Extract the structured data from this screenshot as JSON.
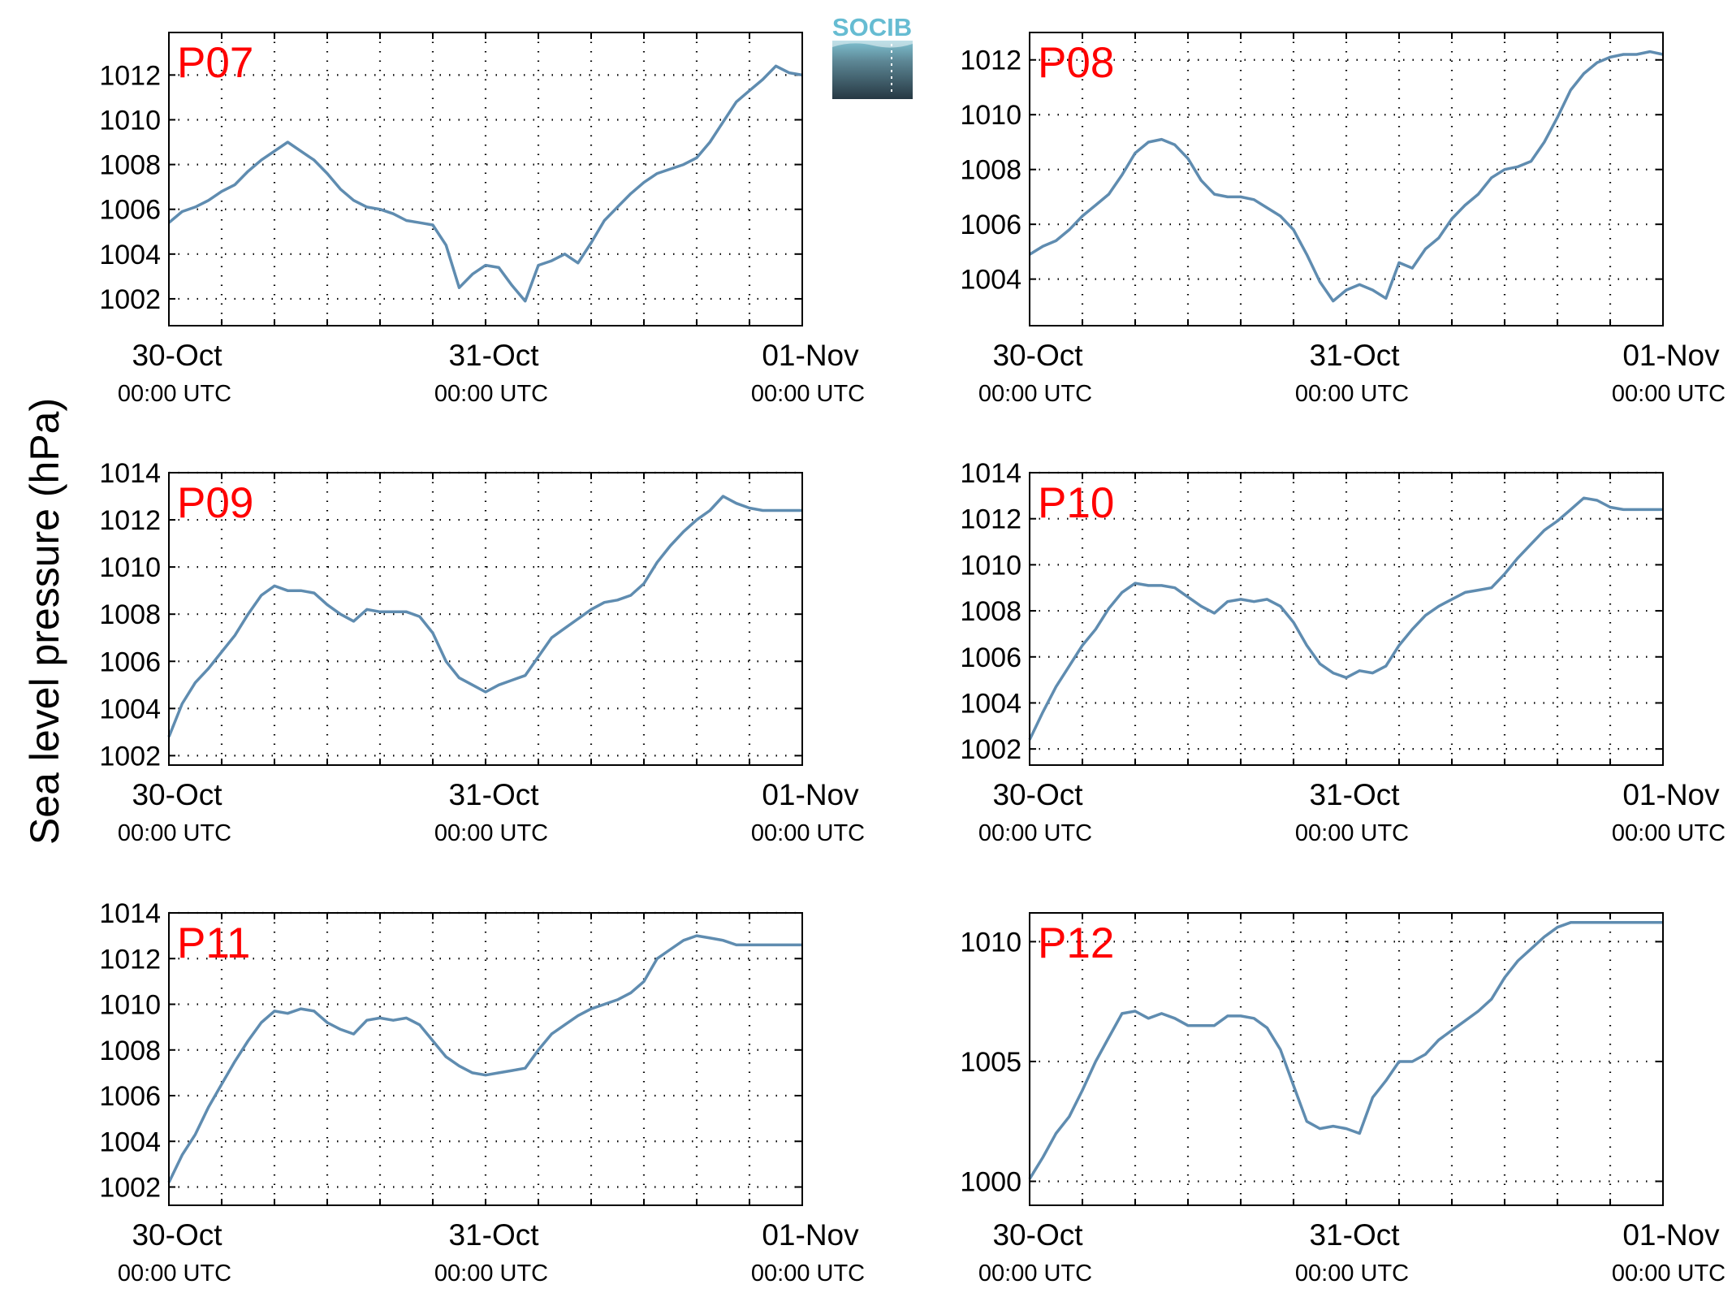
{
  "figure": {
    "ylabel": "Sea level pressure (hPa)",
    "logo_text": "SOCIB",
    "colors": {
      "line": "#5f8cb0",
      "panel_label": "#ff0000",
      "axis": "#000000",
      "grid": "#000000"
    }
  },
  "chart_data": [
    {
      "type": "line",
      "panel_label": "P07",
      "xticks": [
        {
          "d": "30-Oct",
          "t": "00:00 UTC"
        },
        {
          "d": "31-Oct",
          "t": "00:00 UTC"
        },
        {
          "d": "01-Nov",
          "t": "00:00 UTC"
        }
      ],
      "xlim": [
        0,
        48
      ],
      "ylim": [
        1000.8,
        1013.9
      ],
      "yticks": [
        1002,
        1004,
        1006,
        1008,
        1010,
        1012
      ],
      "series": [
        {
          "x": [
            0,
            1,
            2,
            3,
            4,
            5,
            6,
            7,
            8,
            9,
            10,
            11,
            12,
            13,
            14,
            15,
            16,
            17,
            18,
            19,
            20,
            21,
            22,
            23,
            24,
            25,
            26,
            27,
            28,
            29,
            30,
            31,
            32,
            33,
            34,
            35,
            36,
            37,
            38,
            39,
            40,
            41,
            42,
            43,
            44,
            45,
            46,
            47,
            48
          ],
          "y": [
            1005.4,
            1005.9,
            1006.1,
            1006.4,
            1006.8,
            1007.1,
            1007.7,
            1008.2,
            1008.6,
            1009.0,
            1008.6,
            1008.2,
            1007.6,
            1006.9,
            1006.4,
            1006.1,
            1006.0,
            1005.8,
            1005.5,
            1005.4,
            1005.3,
            1004.4,
            1002.5,
            1003.1,
            1003.5,
            1003.4,
            1002.6,
            1001.9,
            1003.5,
            1003.7,
            1004.0,
            1003.6,
            1004.5,
            1005.5,
            1006.1,
            1006.7,
            1007.2,
            1007.6,
            1007.8,
            1008.0,
            1008.3,
            1009.0,
            1009.9,
            1010.8,
            1011.3,
            1011.8,
            1012.4,
            1012.1,
            1012.0
          ]
        }
      ]
    },
    {
      "type": "line",
      "panel_label": "P08",
      "xticks": [
        {
          "d": "30-Oct",
          "t": "00:00 UTC"
        },
        {
          "d": "31-Oct",
          "t": "00:00 UTC"
        },
        {
          "d": "01-Nov",
          "t": "00:00 UTC"
        }
      ],
      "xlim": [
        0,
        48
      ],
      "ylim": [
        1002.3,
        1013.0
      ],
      "yticks": [
        1004,
        1006,
        1008,
        1010,
        1012
      ],
      "series": [
        {
          "x": [
            0,
            1,
            2,
            3,
            4,
            5,
            6,
            7,
            8,
            9,
            10,
            11,
            12,
            13,
            14,
            15,
            16,
            17,
            18,
            19,
            20,
            21,
            22,
            23,
            24,
            25,
            26,
            27,
            28,
            29,
            30,
            31,
            32,
            33,
            34,
            35,
            36,
            37,
            38,
            39,
            40,
            41,
            42,
            43,
            44,
            45,
            46,
            47,
            48
          ],
          "y": [
            1004.9,
            1005.2,
            1005.4,
            1005.8,
            1006.3,
            1006.7,
            1007.1,
            1007.8,
            1008.6,
            1009.0,
            1009.1,
            1008.9,
            1008.4,
            1007.6,
            1007.1,
            1007.0,
            1007.0,
            1006.9,
            1006.6,
            1006.3,
            1005.8,
            1004.9,
            1003.9,
            1003.2,
            1003.6,
            1003.8,
            1003.6,
            1003.3,
            1004.6,
            1004.4,
            1005.1,
            1005.5,
            1006.2,
            1006.7,
            1007.1,
            1007.7,
            1008.0,
            1008.1,
            1008.3,
            1009.0,
            1009.9,
            1010.9,
            1011.5,
            1011.9,
            1012.1,
            1012.2,
            1012.2,
            1012.3,
            1012.2
          ]
        }
      ]
    },
    {
      "type": "line",
      "panel_label": "P09",
      "xticks": [
        {
          "d": "30-Oct",
          "t": "00:00 UTC"
        },
        {
          "d": "31-Oct",
          "t": "00:00 UTC"
        },
        {
          "d": "01-Nov",
          "t": "00:00 UTC"
        }
      ],
      "xlim": [
        0,
        48
      ],
      "ylim": [
        1001.6,
        1014.0
      ],
      "yticks": [
        1002,
        1004,
        1006,
        1008,
        1010,
        1012,
        1014
      ],
      "series": [
        {
          "x": [
            0,
            1,
            2,
            3,
            4,
            5,
            6,
            7,
            8,
            9,
            10,
            11,
            12,
            13,
            14,
            15,
            16,
            17,
            18,
            19,
            20,
            21,
            22,
            23,
            24,
            25,
            26,
            27,
            28,
            29,
            30,
            31,
            32,
            33,
            34,
            35,
            36,
            37,
            38,
            39,
            40,
            41,
            42,
            43,
            44,
            45,
            46,
            47,
            48
          ],
          "y": [
            1002.8,
            1004.2,
            1005.1,
            1005.7,
            1006.4,
            1007.1,
            1008.0,
            1008.8,
            1009.2,
            1009.0,
            1009.0,
            1008.9,
            1008.4,
            1008.0,
            1007.7,
            1008.2,
            1008.1,
            1008.1,
            1008.1,
            1007.9,
            1007.2,
            1006.0,
            1005.3,
            1005.0,
            1004.7,
            1005.0,
            1005.2,
            1005.4,
            1006.2,
            1007.0,
            1007.4,
            1007.8,
            1008.2,
            1008.5,
            1008.6,
            1008.8,
            1009.3,
            1010.2,
            1010.9,
            1011.5,
            1012.0,
            1012.4,
            1013.0,
            1012.7,
            1012.5,
            1012.4,
            1012.4,
            1012.4,
            1012.4
          ]
        }
      ]
    },
    {
      "type": "line",
      "panel_label": "P10",
      "xticks": [
        {
          "d": "30-Oct",
          "t": "00:00 UTC"
        },
        {
          "d": "31-Oct",
          "t": "00:00 UTC"
        },
        {
          "d": "01-Nov",
          "t": "00:00 UTC"
        }
      ],
      "xlim": [
        0,
        48
      ],
      "ylim": [
        1001.3,
        1014.0
      ],
      "yticks": [
        1002,
        1004,
        1006,
        1008,
        1010,
        1012,
        1014
      ],
      "series": [
        {
          "x": [
            0,
            1,
            2,
            3,
            4,
            5,
            6,
            7,
            8,
            9,
            10,
            11,
            12,
            13,
            14,
            15,
            16,
            17,
            18,
            19,
            20,
            21,
            22,
            23,
            24,
            25,
            26,
            27,
            28,
            29,
            30,
            31,
            32,
            33,
            34,
            35,
            36,
            37,
            38,
            39,
            40,
            41,
            42,
            43,
            44,
            45,
            46,
            47,
            48
          ],
          "y": [
            1002.4,
            1003.6,
            1004.7,
            1005.6,
            1006.5,
            1007.2,
            1008.1,
            1008.8,
            1009.2,
            1009.1,
            1009.1,
            1009.0,
            1008.6,
            1008.2,
            1007.9,
            1008.4,
            1008.5,
            1008.4,
            1008.5,
            1008.2,
            1007.5,
            1006.5,
            1005.7,
            1005.3,
            1005.1,
            1005.4,
            1005.3,
            1005.6,
            1006.5,
            1007.2,
            1007.8,
            1008.2,
            1008.5,
            1008.8,
            1008.9,
            1009.0,
            1009.6,
            1010.3,
            1010.9,
            1011.5,
            1011.9,
            1012.4,
            1012.9,
            1012.8,
            1012.5,
            1012.4,
            1012.4,
            1012.4,
            1012.4
          ]
        }
      ]
    },
    {
      "type": "line",
      "panel_label": "P11",
      "xticks": [
        {
          "d": "30-Oct",
          "t": "00:00 UTC"
        },
        {
          "d": "31-Oct",
          "t": "00:00 UTC"
        },
        {
          "d": "01-Nov",
          "t": "00:00 UTC"
        }
      ],
      "xlim": [
        0,
        48
      ],
      "ylim": [
        1001.2,
        1014.0
      ],
      "yticks": [
        1002,
        1004,
        1006,
        1008,
        1010,
        1012,
        1014
      ],
      "series": [
        {
          "x": [
            0,
            1,
            2,
            3,
            4,
            5,
            6,
            7,
            8,
            9,
            10,
            11,
            12,
            13,
            14,
            15,
            16,
            17,
            18,
            19,
            20,
            21,
            22,
            23,
            24,
            25,
            26,
            27,
            28,
            29,
            30,
            31,
            32,
            33,
            34,
            35,
            36,
            37,
            38,
            39,
            40,
            41,
            42,
            43,
            44,
            45,
            46,
            47,
            48
          ],
          "y": [
            1002.2,
            1003.4,
            1004.3,
            1005.5,
            1006.5,
            1007.5,
            1008.4,
            1009.2,
            1009.7,
            1009.6,
            1009.8,
            1009.7,
            1009.2,
            1008.9,
            1008.7,
            1009.3,
            1009.4,
            1009.3,
            1009.4,
            1009.1,
            1008.4,
            1007.7,
            1007.3,
            1007.0,
            1006.9,
            1007.0,
            1007.1,
            1007.2,
            1008.0,
            1008.7,
            1009.1,
            1009.5,
            1009.8,
            1010.0,
            1010.2,
            1010.5,
            1011.0,
            1012.0,
            1012.4,
            1012.8,
            1013.0,
            1012.9,
            1012.8,
            1012.6,
            1012.6,
            1012.6,
            1012.6,
            1012.6,
            1012.6
          ]
        }
      ]
    },
    {
      "type": "line",
      "panel_label": "P12",
      "xticks": [
        {
          "d": "30-Oct",
          "t": "00:00 UTC"
        },
        {
          "d": "31-Oct",
          "t": "00:00 UTC"
        },
        {
          "d": "01-Nov",
          "t": "00:00 UTC"
        }
      ],
      "xlim": [
        0,
        48
      ],
      "ylim": [
        999.0,
        1011.2
      ],
      "yticks": [
        1000,
        1005,
        1010
      ],
      "series": [
        {
          "x": [
            0,
            1,
            2,
            3,
            4,
            5,
            6,
            7,
            8,
            9,
            10,
            11,
            12,
            13,
            14,
            15,
            16,
            17,
            18,
            19,
            20,
            21,
            22,
            23,
            24,
            25,
            26,
            27,
            28,
            29,
            30,
            31,
            32,
            33,
            34,
            35,
            36,
            37,
            38,
            39,
            40,
            41,
            42,
            43,
            44,
            45,
            46,
            47,
            48
          ],
          "y": [
            1000.1,
            1001.0,
            1002.0,
            1002.7,
            1003.8,
            1005.0,
            1006.0,
            1007.0,
            1007.1,
            1006.8,
            1007.0,
            1006.8,
            1006.5,
            1006.5,
            1006.5,
            1006.9,
            1006.9,
            1006.8,
            1006.4,
            1005.5,
            1004.0,
            1002.5,
            1002.2,
            1002.3,
            1002.2,
            1002.0,
            1003.5,
            1004.2,
            1005.0,
            1005.0,
            1005.3,
            1005.9,
            1006.3,
            1006.7,
            1007.1,
            1007.6,
            1008.5,
            1009.2,
            1009.7,
            1010.2,
            1010.6,
            1010.8,
            1010.8,
            1010.8,
            1010.8,
            1010.8,
            1010.8,
            1010.8,
            1010.8
          ]
        }
      ]
    }
  ]
}
